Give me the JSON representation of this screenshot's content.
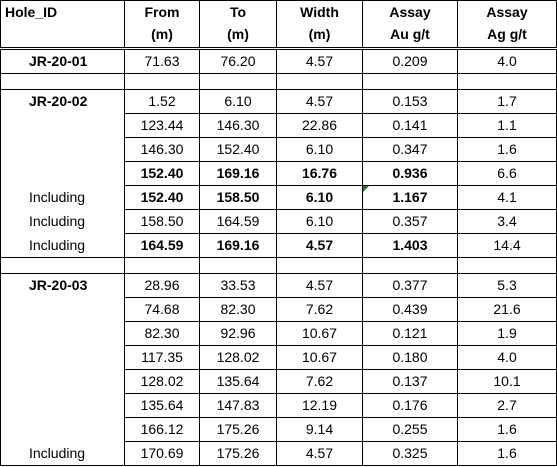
{
  "table": {
    "header": [
      [
        "Hole_ID"
      ],
      [
        "From",
        "(m)"
      ],
      [
        "To",
        "(m)"
      ],
      [
        "Width",
        "(m)"
      ],
      [
        "Assay",
        "Au g/t"
      ],
      [
        "Assay",
        "Ag g/t"
      ]
    ],
    "groups": [
      {
        "hole_id": "JR-20-01",
        "rows": [
          {
            "values": [
              "71.63",
              "76.20",
              "4.57",
              "0.209",
              "4.0"
            ]
          }
        ]
      },
      {
        "hole_id": "JR-20-02",
        "rows": [
          {
            "values": [
              "1.52",
              "6.10",
              "4.57",
              "0.153",
              "1.7"
            ]
          },
          {
            "values": [
              "123.44",
              "146.30",
              "22.86",
              "0.141",
              "1.1"
            ]
          },
          {
            "values": [
              "146.30",
              "152.40",
              "6.10",
              "0.347",
              "1.6"
            ]
          },
          {
            "values": [
              "152.40",
              "169.16",
              "16.76",
              "0.936",
              "6.6"
            ],
            "bold": true
          },
          {
            "label": "Including",
            "values": [
              "152.40",
              "158.50",
              "6.10",
              "1.167",
              "4.1"
            ],
            "bold": true
          },
          {
            "label": "Including",
            "values": [
              "158.50",
              "164.59",
              "6.10",
              "0.357",
              "3.4"
            ]
          },
          {
            "label": "Including",
            "values": [
              "164.59",
              "169.16",
              "4.57",
              "1.403",
              "14.4"
            ],
            "bold": true
          }
        ]
      },
      {
        "hole_id": "JR-20-03",
        "rows": [
          {
            "values": [
              "28.96",
              "33.53",
              "4.57",
              "0.377",
              "5.3"
            ]
          },
          {
            "values": [
              "74.68",
              "82.30",
              "7.62",
              "0.439",
              "21.6"
            ]
          },
          {
            "values": [
              "82.30",
              "92.96",
              "10.67",
              "0.121",
              "1.9"
            ]
          },
          {
            "values": [
              "117.35",
              "128.02",
              "10.67",
              "0.180",
              "4.0"
            ]
          },
          {
            "values": [
              "128.02",
              "135.64",
              "7.62",
              "0.137",
              "10.1"
            ]
          },
          {
            "values": [
              "135.64",
              "147.83",
              "12.19",
              "0.176",
              "2.7"
            ]
          },
          {
            "values": [
              "166.12",
              "175.26",
              "9.14",
              "0.255",
              "1.6"
            ]
          },
          {
            "label": "Including",
            "values": [
              "170.69",
              "175.26",
              "4.57",
              "0.325",
              "1.6"
            ]
          }
        ]
      }
    ]
  }
}
